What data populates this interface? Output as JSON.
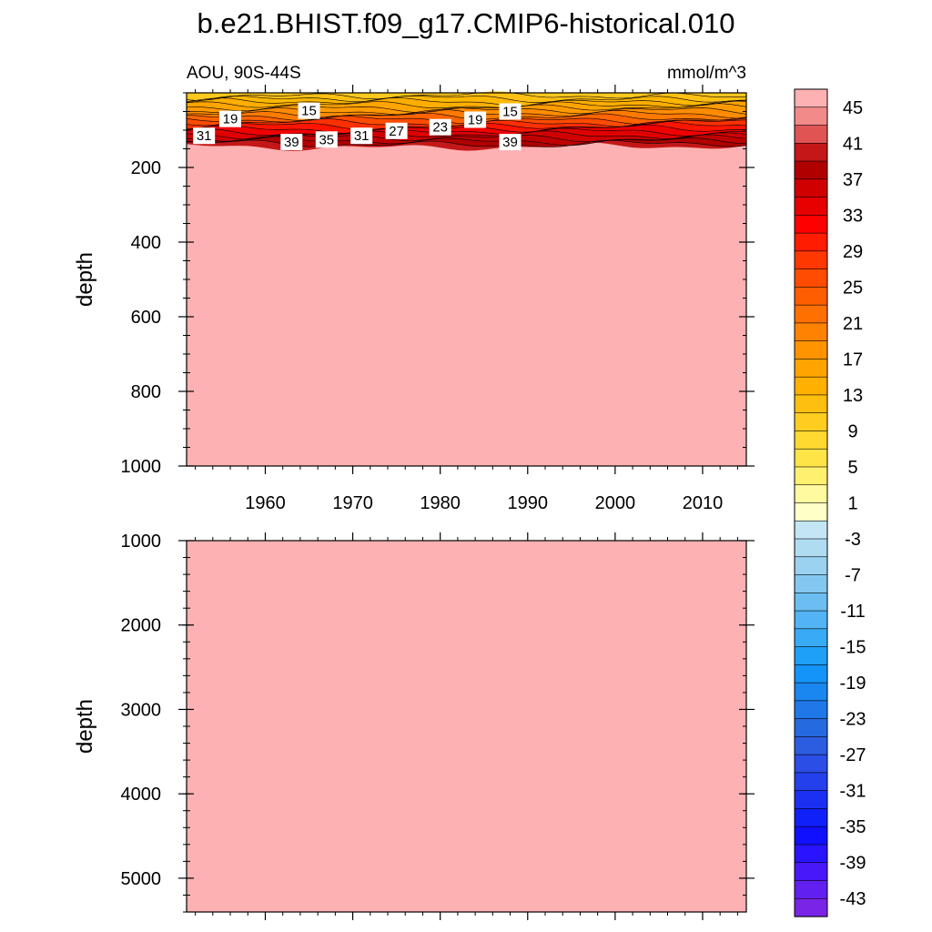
{
  "chart_data": {
    "type": "heatmap",
    "title": "b.e21.BHIST.f09_g17.CMIP6-historical.010",
    "left_label": "AOU, 90S-44S",
    "right_label": "mmol/m^3",
    "background_color": "#fdb1b2",
    "panels": [
      {
        "name": "upper",
        "ylabel": "depth",
        "ylim": [
          1000,
          0
        ],
        "yticks": [
          200,
          400,
          600,
          800,
          1000
        ],
        "xlim": [
          1951,
          2015
        ],
        "xticks": [
          1960,
          1970,
          1980,
          1990,
          2000,
          2010
        ],
        "contour_labels": [
          {
            "text": "19",
            "year": 1956,
            "depth": 70
          },
          {
            "text": "15",
            "year": 1965,
            "depth": 48
          },
          {
            "text": "15",
            "year": 1988,
            "depth": 50
          },
          {
            "text": "19",
            "year": 1984,
            "depth": 72
          },
          {
            "text": "23",
            "year": 1980,
            "depth": 92
          },
          {
            "text": "27",
            "year": 1975,
            "depth": 102
          },
          {
            "text": "31",
            "year": 1953,
            "depth": 115
          },
          {
            "text": "31",
            "year": 1971,
            "depth": 115
          },
          {
            "text": "35",
            "year": 1967,
            "depth": 125
          },
          {
            "text": "39",
            "year": 1963,
            "depth": 132
          },
          {
            "text": "39",
            "year": 1988,
            "depth": 132
          }
        ]
      },
      {
        "name": "lower",
        "ylabel": "depth",
        "ylim": [
          1000,
          5400
        ],
        "yticks": [
          1000,
          2000,
          3000,
          4000,
          5000
        ],
        "xlim": [
          1951,
          2015
        ]
      }
    ],
    "colorbar": {
      "levels": [
        45,
        41,
        37,
        33,
        29,
        25,
        21,
        17,
        13,
        9,
        5,
        1,
        -3,
        -7,
        -11,
        -15,
        -19,
        -23,
        -27,
        -31,
        -35,
        -39,
        -43
      ],
      "colors": [
        "#fdb1b2",
        "#f28a8a",
        "#e05454",
        "#c41818",
        "#b00000",
        "#d00000",
        "#e60000",
        "#ff0000",
        "#ff1c00",
        "#ff3800",
        "#ff4c00",
        "#ff5e00",
        "#ff7000",
        "#ff8200",
        "#ff9400",
        "#ffa400",
        "#ffb000",
        "#ffbf10",
        "#ffcc20",
        "#ffd930",
        "#ffe448",
        "#fff070",
        "#fffaa0",
        "#ffffc8",
        "#c4e6f4",
        "#b0dcf2",
        "#9ad2f0",
        "#84c8f0",
        "#6cbef2",
        "#52b4f4",
        "#38aaf6",
        "#1ea0f8",
        "#1494f8",
        "#1a86f0",
        "#2078e8",
        "#266ae0",
        "#2c5ce0",
        "#2a4ee6",
        "#2440ec",
        "#1c30f2",
        "#1020f8",
        "#1010ff",
        "#2a14ff",
        "#4818f8",
        "#6220f0",
        "#7a24e8"
      ]
    }
  }
}
